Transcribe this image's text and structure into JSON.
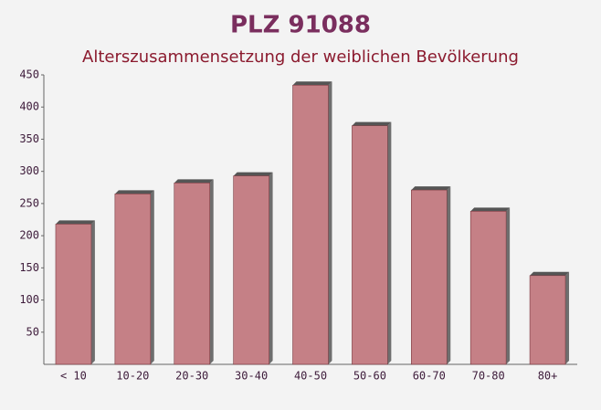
{
  "chart_data": {
    "type": "bar",
    "title": "PLZ 91088",
    "subtitle": "Alterszusammensetzung der weiblichen Bevölkerung",
    "categories": [
      "< 10",
      "10-20",
      "20-30",
      "30-40",
      "40-50",
      "50-60",
      "60-70",
      "70-80",
      "80+"
    ],
    "values": [
      218,
      265,
      282,
      293,
      434,
      371,
      271,
      238,
      138
    ],
    "color": "#c0737a",
    "ylim": [
      0,
      450
    ],
    "yticks": [
      50,
      100,
      150,
      200,
      250,
      300,
      350,
      400,
      450
    ],
    "grid": false
  }
}
